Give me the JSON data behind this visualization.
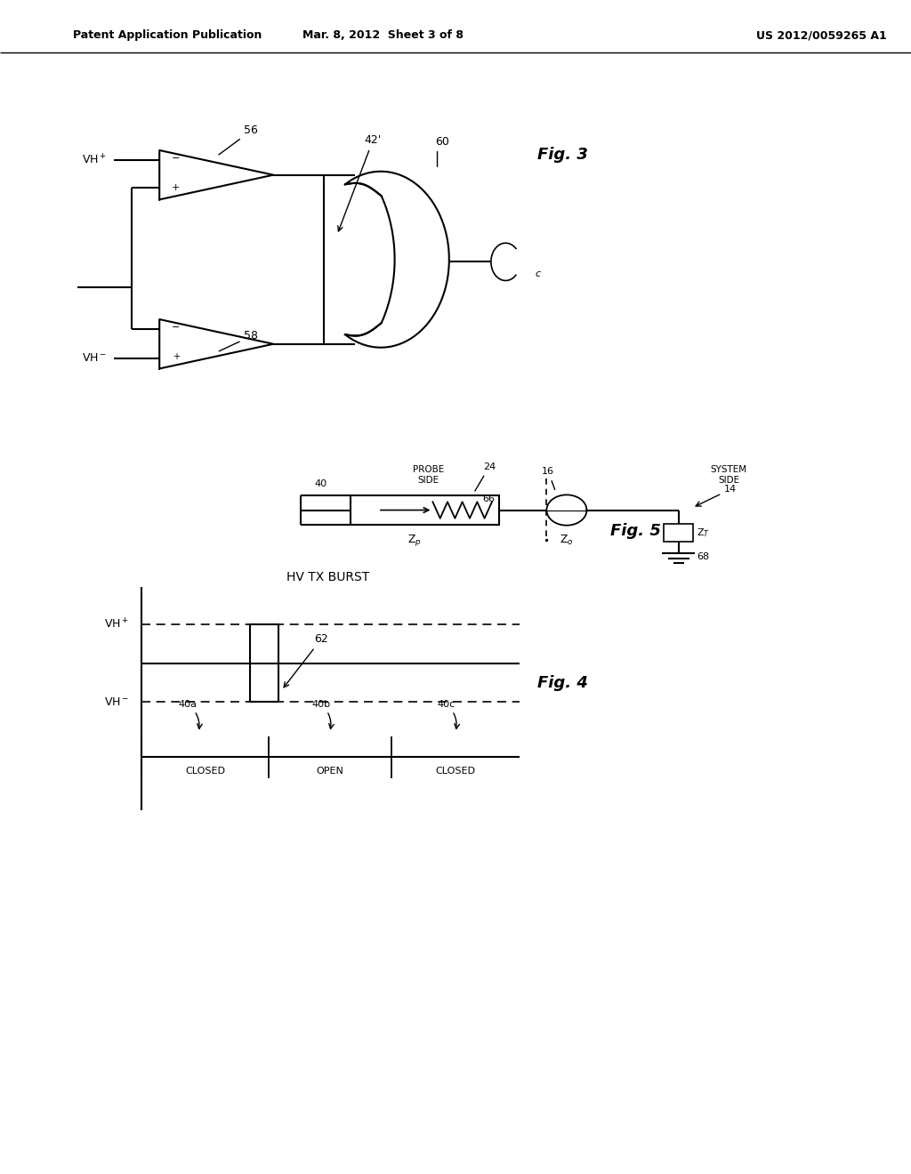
{
  "header_left": "Patent Application Publication",
  "header_mid": "Mar. 8, 2012  Sheet 3 of 8",
  "header_right": "US 2012/0059265 A1",
  "bg_color": "#ffffff",
  "line_color": "#000000",
  "fig3_label": "Fig. 3",
  "fig4_label": "Fig. 4",
  "fig5_label": "Fig. 5"
}
